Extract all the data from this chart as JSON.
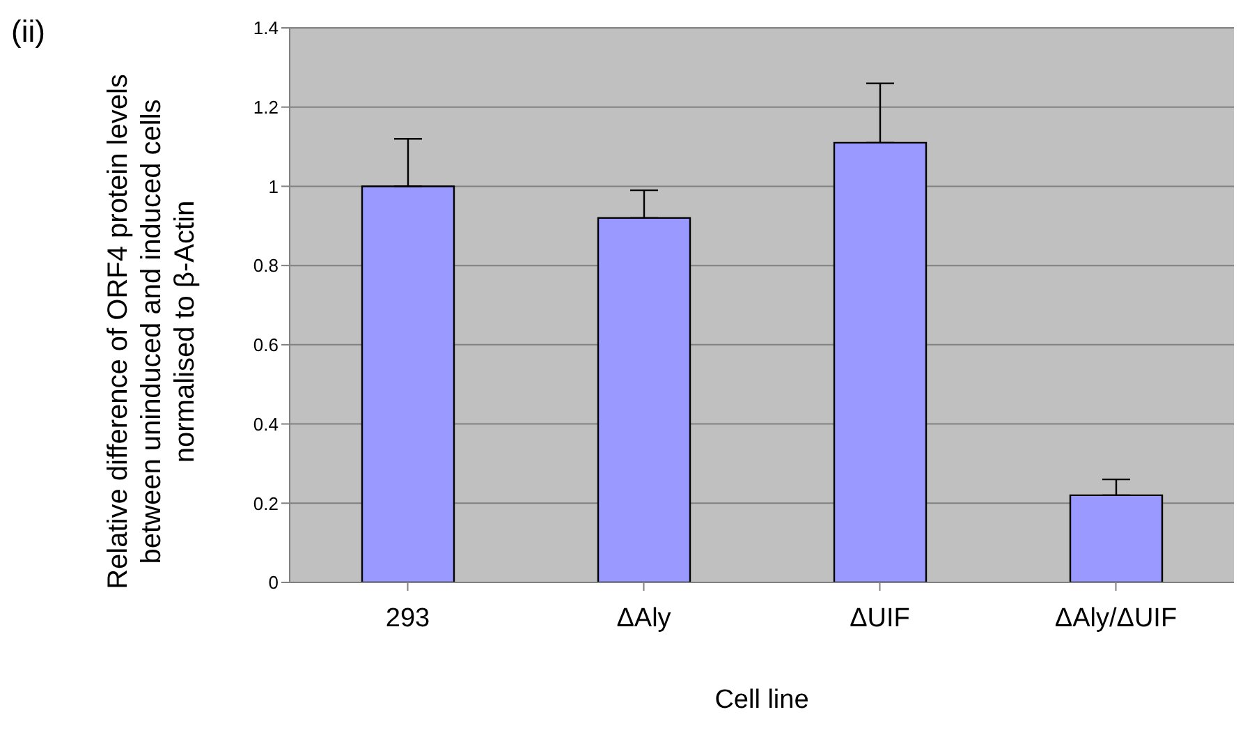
{
  "chart_data": {
    "type": "bar",
    "annotations": [
      "(ii)"
    ],
    "xlabel": "Cell line",
    "ylabel": "Relative difference of ORF4 protein levels between uninduced and induced cells normalised to β-Actin",
    "categories": [
      "293",
      "ΔAly",
      "ΔUIF",
      "ΔAly/ΔUIF"
    ],
    "values": [
      1,
      0.92,
      1.11,
      0.22
    ],
    "errors": [
      [
        1,
        1.12
      ],
      [
        0.92,
        0.99
      ],
      [
        1.11,
        1.26
      ],
      [
        0.22,
        0.26
      ]
    ],
    "color": "#9999ff",
    "ylim": [
      0,
      1.4
    ],
    "yticks": [
      0,
      0.2,
      0.4,
      0.6,
      0.8,
      1,
      1.2,
      1.4
    ],
    "grid": "y",
    "legend": false
  }
}
